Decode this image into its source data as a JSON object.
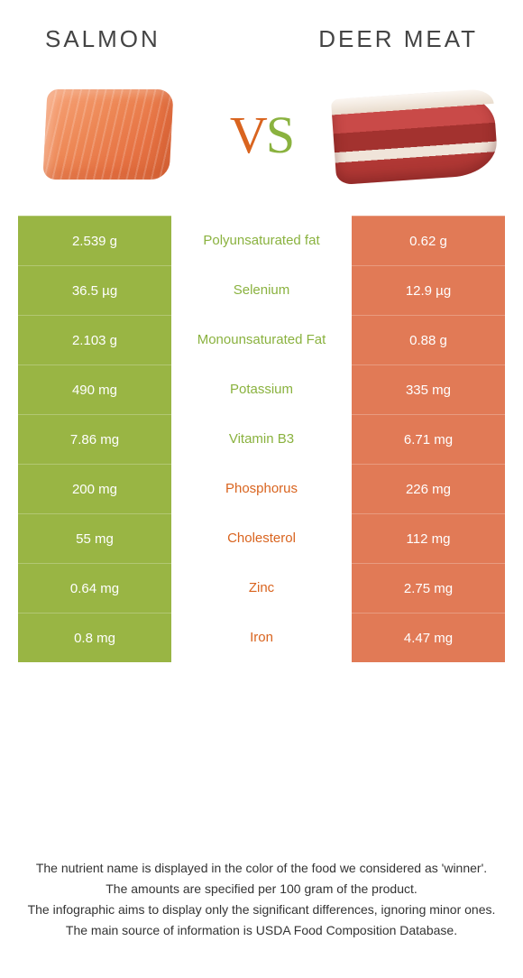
{
  "colors": {
    "salmon": "#99b544",
    "deer": "#e17a56",
    "salmon_text": "#8ab23f",
    "deer_text": "#d9641f"
  },
  "header": {
    "left": "SALMON",
    "right": "DEER MEAT"
  },
  "vs": {
    "v": "V",
    "s": "S"
  },
  "rows": [
    {
      "left": "2.539 g",
      "label": "Polyunsaturated fat",
      "right": "0.62 g",
      "winner": "salmon"
    },
    {
      "left": "36.5 µg",
      "label": "Selenium",
      "right": "12.9 µg",
      "winner": "salmon"
    },
    {
      "left": "2.103 g",
      "label": "Monounsaturated Fat",
      "right": "0.88 g",
      "winner": "salmon"
    },
    {
      "left": "490 mg",
      "label": "Potassium",
      "right": "335 mg",
      "winner": "salmon"
    },
    {
      "left": "7.86 mg",
      "label": "Vitamin B3",
      "right": "6.71 mg",
      "winner": "salmon"
    },
    {
      "left": "200 mg",
      "label": "Phosphorus",
      "right": "226 mg",
      "winner": "deer"
    },
    {
      "left": "55 mg",
      "label": "Cholesterol",
      "right": "112 mg",
      "winner": "deer"
    },
    {
      "left": "0.64 mg",
      "label": "Zinc",
      "right": "2.75 mg",
      "winner": "deer"
    },
    {
      "left": "0.8 mg",
      "label": "Iron",
      "right": "4.47 mg",
      "winner": "deer"
    }
  ],
  "footer": {
    "l1": "The nutrient name is displayed in the color of the food we considered as 'winner'.",
    "l2": "The amounts are specified per 100 gram of the product.",
    "l3": "The infographic aims to display only the significant differences, ignoring minor ones.",
    "l4": "The main source of information is USDA Food Composition Database."
  }
}
